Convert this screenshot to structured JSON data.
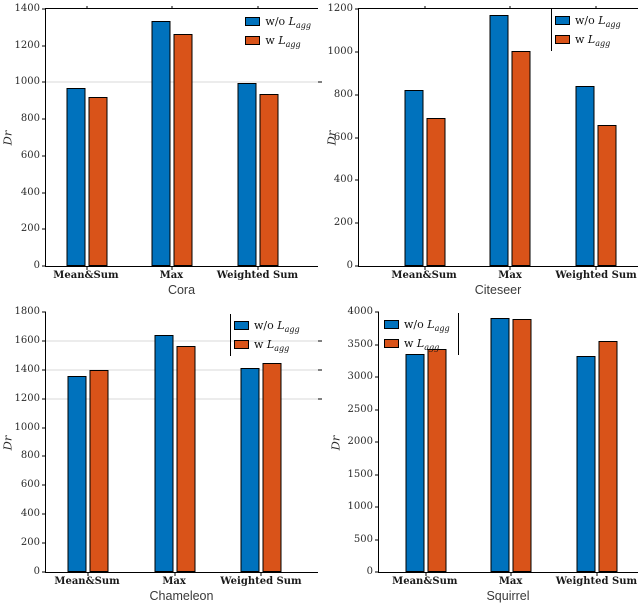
{
  "figure": {
    "ylabel": "Dr",
    "categories": [
      "Mean&Sum",
      "Max",
      "Weighted Sum"
    ],
    "series_labels": [
      "w/o L_agg",
      "w L_agg"
    ],
    "series_colors": [
      "#0072BD",
      "#D95319"
    ],
    "bar_edge_color": "#000000",
    "gridline_color": "#d9d9d9"
  },
  "chart_data": [
    {
      "type": "bar",
      "title": "Cora",
      "ylabel": "Dr",
      "categories": [
        "Mean&Sum",
        "Max",
        "Weighted Sum"
      ],
      "series": [
        {
          "name": "w/o L_agg",
          "color": "#0072BD",
          "values": [
            970,
            1335,
            995
          ]
        },
        {
          "name": "w L_agg",
          "color": "#D95319",
          "values": [
            920,
            1265,
            935
          ]
        }
      ],
      "ylim": [
        0,
        1400
      ],
      "ytick_step": 200,
      "gridlines_y": [
        1000
      ],
      "legend_position": "top-right",
      "legend_border": "none",
      "box_top": true,
      "grid": "partial"
    },
    {
      "type": "bar",
      "title": "Citeseer",
      "ylabel": "Dr",
      "categories": [
        "Mean&Sum",
        "Max",
        "Weighted Sum"
      ],
      "series": [
        {
          "name": "w/o L_agg",
          "color": "#0072BD",
          "values": [
            820,
            1170,
            840
          ]
        },
        {
          "name": "w L_agg",
          "color": "#D95319",
          "values": [
            690,
            1005,
            660
          ]
        }
      ],
      "ylim": [
        0,
        1200
      ],
      "ytick_step": 200,
      "gridlines_y": [],
      "legend_position": "top-right",
      "legend_border": "left",
      "box_top": true,
      "grid": "off"
    },
    {
      "type": "bar",
      "title": "Chameleon",
      "ylabel": "Dr",
      "categories": [
        "Mean&Sum",
        "Max",
        "Weighted Sum"
      ],
      "series": [
        {
          "name": "w/o L_agg",
          "color": "#0072BD",
          "values": [
            1360,
            1640,
            1410
          ]
        },
        {
          "name": "w L_agg",
          "color": "#D95319",
          "values": [
            1400,
            1565,
            1450
          ]
        }
      ],
      "ylim": [
        0,
        1800
      ],
      "ytick_step": 200,
      "gridlines_y": [
        1200,
        1400,
        1600
      ],
      "legend_position": "top-right",
      "legend_border": "left",
      "box_top": false,
      "grid": "partial"
    },
    {
      "type": "bar",
      "title": "Squirrel",
      "ylabel": "Dr",
      "categories": [
        "Mean&Sum",
        "Max",
        "Weighted Sum"
      ],
      "series": [
        {
          "name": "w/o L_agg",
          "color": "#0072BD",
          "values": [
            3350,
            3915,
            3330
          ]
        },
        {
          "name": "w L_agg",
          "color": "#D95319",
          "values": [
            3430,
            3900,
            3550
          ]
        }
      ],
      "ylim": [
        0,
        4000
      ],
      "ytick_step": 500,
      "gridlines_y": [],
      "legend_position": "top-left",
      "legend_border": "right",
      "box_top": false,
      "grid": "off"
    }
  ]
}
